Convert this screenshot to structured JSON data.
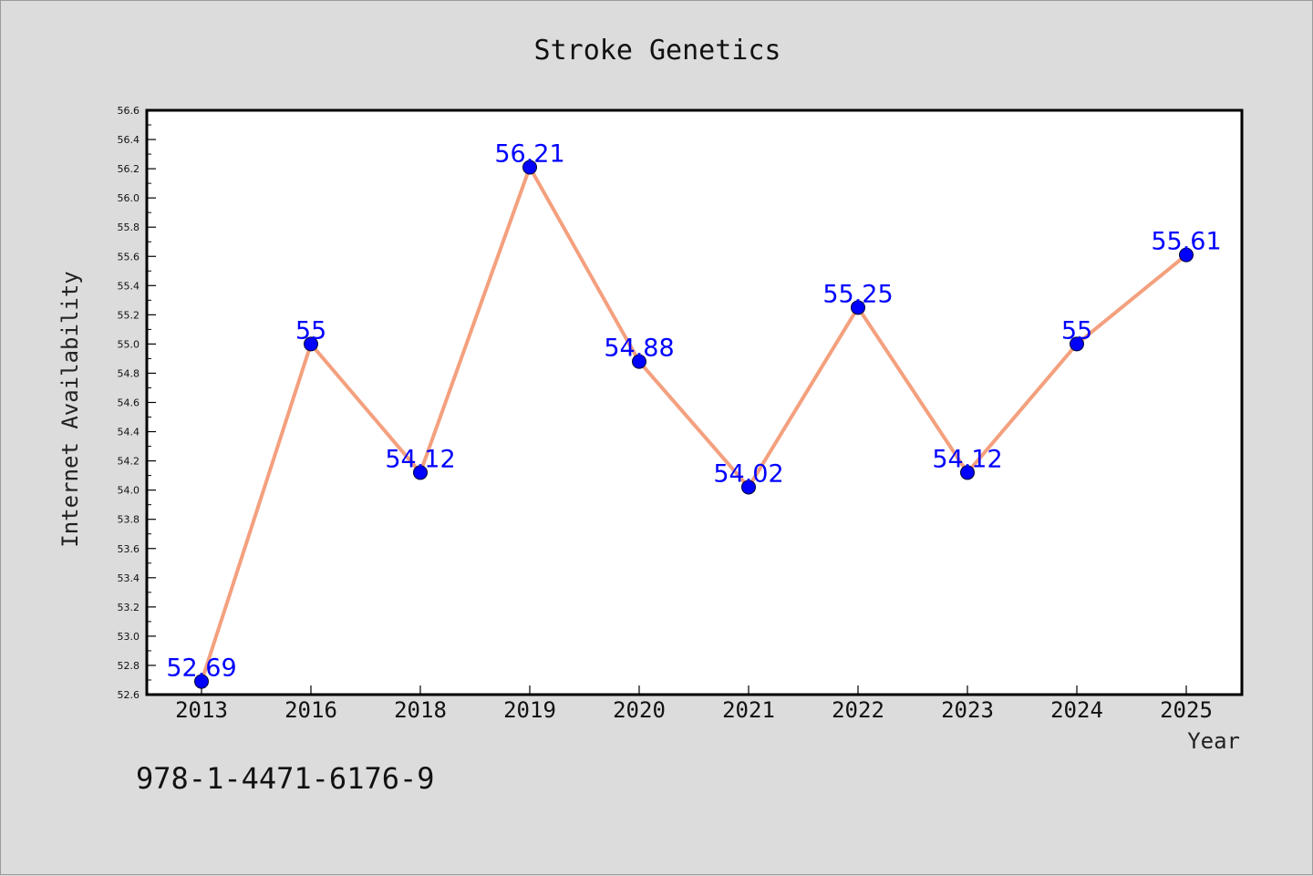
{
  "chart_data": {
    "type": "line",
    "title": "Stroke Genetics",
    "xlabel": "Year",
    "ylabel": "Internet Availability",
    "categories": [
      "2013",
      "2016",
      "2018",
      "2019",
      "2020",
      "2021",
      "2022",
      "2023",
      "2024",
      "2025"
    ],
    "series": [
      {
        "values": [
          52.69,
          55,
          54.12,
          56.21,
          54.88,
          54.02,
          55.25,
          54.12,
          55,
          55.61
        ],
        "data_labels": [
          "52.69",
          "55",
          "54.12",
          "56.21",
          "54.88",
          "54.02",
          "55.25",
          "54.12",
          "55",
          "55.61"
        ]
      }
    ],
    "ylim": [
      52.6,
      56.6
    ],
    "yticks": [
      "52.6",
      "52.8",
      "53.0",
      "53.2",
      "53.4",
      "53.6",
      "53.8",
      "54.0",
      "54.2",
      "54.4",
      "54.6",
      "54.8",
      "55.0",
      "55.2",
      "55.4",
      "55.6",
      "55.8",
      "56.0",
      "56.2",
      "56.4",
      "56.6"
    ],
    "grid": false,
    "line_color": "#f4a07e",
    "marker_color": "#0000ff",
    "label_color": "#0000ff",
    "background_color": "#dcdcdc",
    "plot_background_color": "#ffffff"
  },
  "caption": "978-1-4471-6176-9"
}
